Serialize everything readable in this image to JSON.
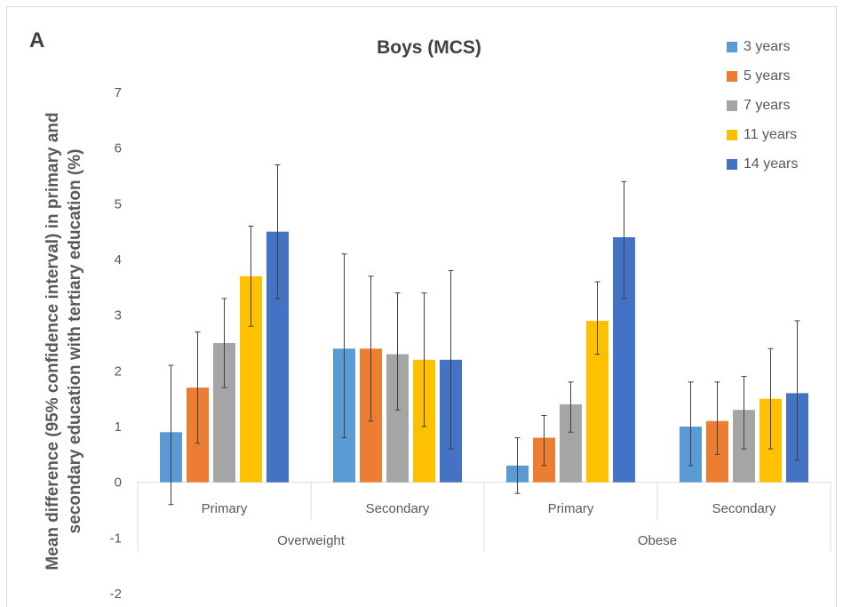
{
  "panel_label": "A",
  "chart_data": {
    "type": "bar",
    "title": "Boys (MCS)",
    "ylabel": "Mean difference (95% confidence interval) in primary and secondary education with tertiary education (%)",
    "xlabel": "",
    "ylim": [
      -2,
      7
    ],
    "yticks": [
      -2,
      -1,
      0,
      1,
      2,
      3,
      4,
      5,
      6,
      7
    ],
    "grid": false,
    "legend_position": "top-right",
    "groups": [
      {
        "label": "Overweight",
        "categories": [
          "Primary",
          "Secondary"
        ]
      },
      {
        "label": "Obese",
        "categories": [
          "Primary",
          "Secondary"
        ]
      }
    ],
    "categories": [
      "Primary",
      "Secondary",
      "Primary",
      "Secondary"
    ],
    "series": [
      {
        "name": "3 years",
        "color": "#5b9bd5",
        "values": [
          0.9,
          2.4,
          0.3,
          1.0
        ],
        "ci_lower": [
          -0.4,
          0.8,
          -0.2,
          0.3
        ],
        "ci_upper": [
          2.1,
          4.1,
          0.8,
          1.8
        ]
      },
      {
        "name": "5 years",
        "color": "#ed7d31",
        "values": [
          1.7,
          2.4,
          0.8,
          1.1
        ],
        "ci_lower": [
          0.7,
          1.1,
          0.3,
          0.5
        ],
        "ci_upper": [
          2.7,
          3.7,
          1.2,
          1.8
        ]
      },
      {
        "name": "7 years",
        "color": "#a5a5a5",
        "values": [
          2.5,
          2.3,
          1.4,
          1.3
        ],
        "ci_lower": [
          1.7,
          1.3,
          0.9,
          0.6
        ],
        "ci_upper": [
          3.3,
          3.4,
          1.8,
          1.9
        ]
      },
      {
        "name": "11 years",
        "color": "#ffc000",
        "values": [
          3.7,
          2.2,
          2.9,
          1.5
        ],
        "ci_lower": [
          2.8,
          1.0,
          2.3,
          0.6
        ],
        "ci_upper": [
          4.6,
          3.4,
          3.6,
          2.4
        ]
      },
      {
        "name": "14 years",
        "color": "#4472c4",
        "values": [
          4.5,
          2.2,
          4.4,
          1.6
        ],
        "ci_lower": [
          3.3,
          0.6,
          3.3,
          0.4
        ],
        "ci_upper": [
          5.7,
          3.8,
          5.4,
          2.9
        ]
      }
    ]
  }
}
